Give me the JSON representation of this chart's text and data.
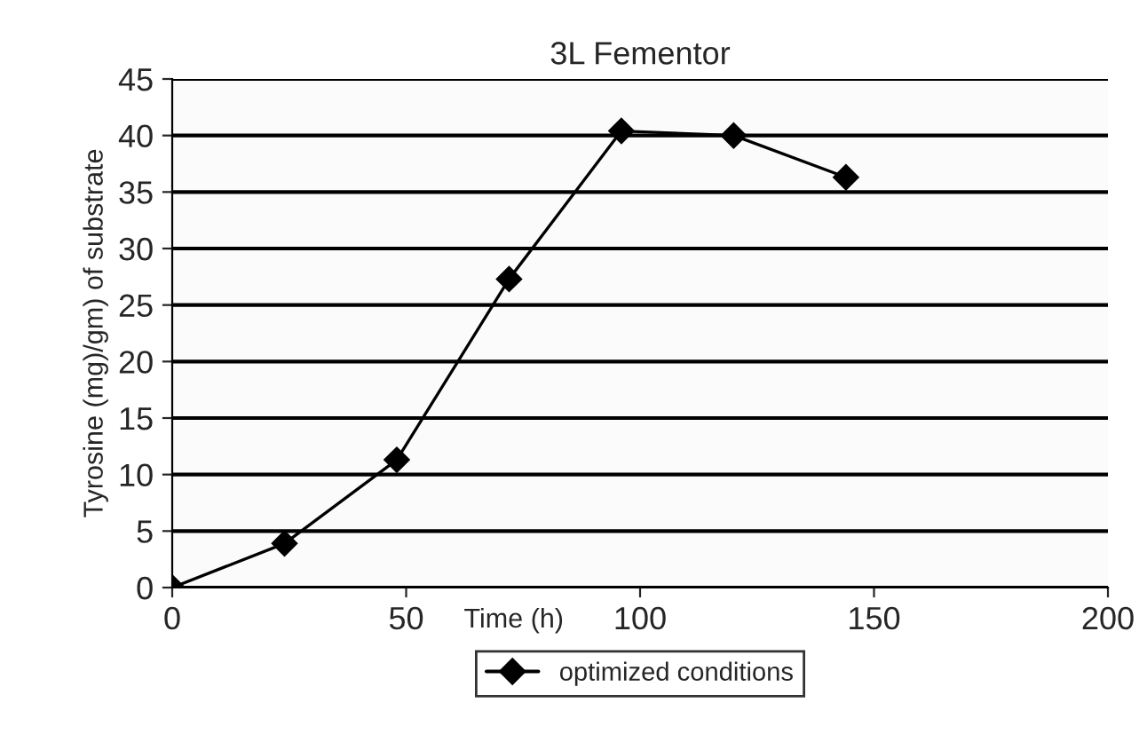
{
  "chart_data": {
    "type": "line",
    "title": "3L Fementor",
    "xlabel": "Time (h)",
    "ylabel": "Tyrosine (mg)/gm) of substrate",
    "x": [
      0,
      24,
      48,
      72,
      96,
      120,
      144
    ],
    "series": [
      {
        "name": "optimized conditions",
        "color": "#000000",
        "values": [
          0,
          3.9,
          11.3,
          27.3,
          40.4,
          40.0,
          36.3
        ]
      }
    ],
    "xlim": [
      0,
      200
    ],
    "xticks": [
      0,
      50,
      100,
      150,
      200
    ],
    "ylim": [
      0,
      45
    ],
    "yticks": [
      0,
      5,
      10,
      15,
      20,
      25,
      30,
      35,
      40,
      45
    ],
    "grid": "y",
    "legend": "bottom",
    "marker": "diamond",
    "line_style": "solid"
  }
}
